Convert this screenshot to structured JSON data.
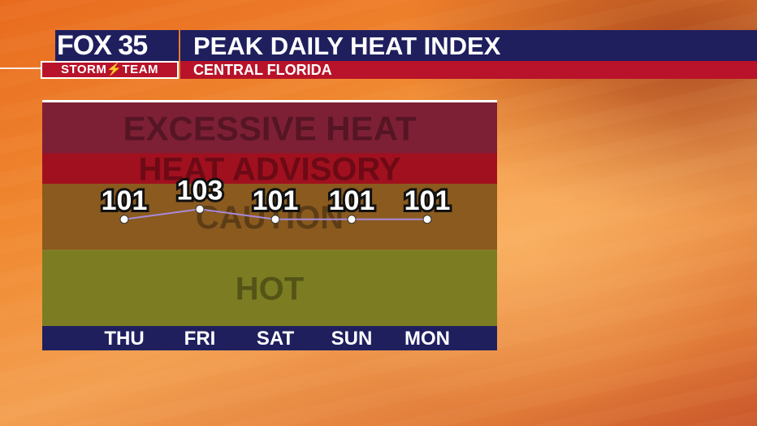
{
  "header": {
    "logo_top": "FOX 35",
    "logo_bottom": "STORM⚡TEAM",
    "title": "PEAK DAILY HEAT INDEX",
    "subtitle": "CENTRAL FLORIDA"
  },
  "colors": {
    "header_navy": "#1f1f5e",
    "header_red": "#b8132a",
    "band_excessive": "#7e2035",
    "band_advisory": "#a0101f",
    "band_caution": "#8a5a1f",
    "band_hot": "#7c7d22",
    "axis_bar": "#1f1f5e",
    "line": "#a88ad8"
  },
  "chart_data": {
    "type": "line",
    "categories": [
      "THU",
      "FRI",
      "SAT",
      "SUN",
      "MON"
    ],
    "series": [
      {
        "values": [
          101,
          103,
          101,
          101,
          101
        ]
      }
    ],
    "bands": [
      {
        "label": "EXCESSIVE HEAT",
        "min": 114,
        "max": 124
      },
      {
        "label": "HEAT ADVISORY",
        "min": 108,
        "max": 114
      },
      {
        "label": "CAUTION",
        "min": 95,
        "max": 108
      },
      {
        "label": "HOT",
        "min": 80,
        "max": 95
      }
    ],
    "ylim": [
      80,
      124
    ],
    "grid": false,
    "legend": "none"
  }
}
